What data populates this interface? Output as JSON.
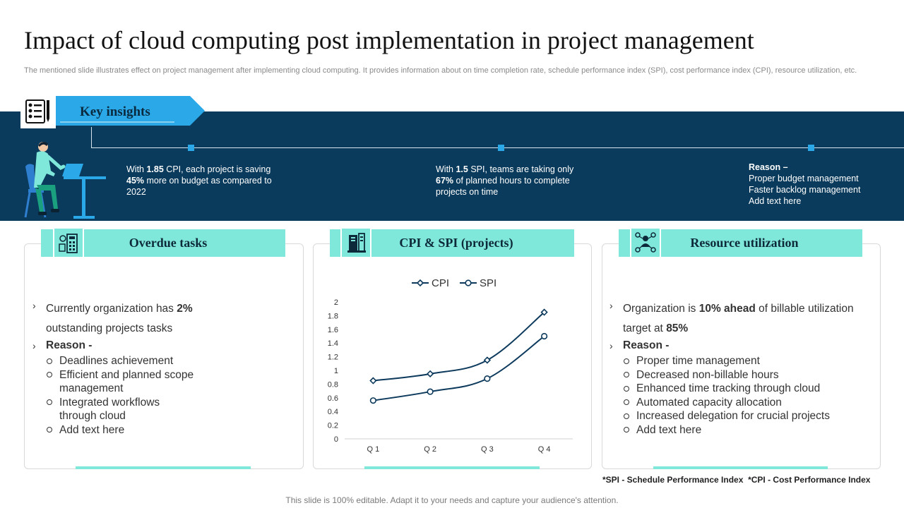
{
  "header": {
    "title": "Impact of cloud computing post implementation in project management",
    "subtitle": "The mentioned slide illustrates effect on project management after implementing cloud computing. It provides information about on time completion rate, schedule performance index (SPI), cost performance index (CPI), resource utilization, etc."
  },
  "key_insights": {
    "label": "Key insights",
    "items": [
      {
        "pre": "With ",
        "b1": "1.85",
        "mid1": " CPI, each project is saving ",
        "b2": "45%",
        "post": " more on budget as compared to 2022"
      },
      {
        "pre": "With ",
        "b1": "1.5",
        "mid1": " SPI, teams are taking only ",
        "b2": "67%",
        "post": " of planned hours to complete projects on time"
      }
    ],
    "reason": {
      "title": "Reason –",
      "lines": [
        "Proper budget management",
        "Faster backlog management",
        "Add text here"
      ]
    }
  },
  "cards": {
    "overdue": {
      "title": "Overdue tasks",
      "bullet1_pre": "Currently organization has ",
      "bullet1_bold": "2%",
      "bullet1_line2": "outstanding projects tasks",
      "reason": "Reason -",
      "subs": [
        "Deadlines achievement",
        "Efficient and planned scope",
        "management",
        "Integrated workflows",
        "through cloud",
        "Add text here"
      ]
    },
    "cpi_spi": {
      "title": "CPI & SPI (projects)"
    },
    "resource": {
      "title": "Resource utilization",
      "bullet1_pre": "Organization is ",
      "bullet1_bold": "10% ahead",
      "bullet1_post": " of billable utilization",
      "bullet1_line2_pre": "target at ",
      "bullet1_line2_bold": "85%",
      "reason": "Reason -",
      "subs": [
        "Proper time management",
        "Decreased non-billable hours",
        "Enhanced time tracking through cloud",
        "Automated capacity allocation",
        "Increased delegation for crucial projects",
        "Add text here"
      ]
    }
  },
  "chart_data": {
    "type": "line",
    "categories": [
      "Q 1",
      "Q 2",
      "Q 3",
      "Q 4"
    ],
    "series": [
      {
        "name": "CPI",
        "values": [
          0.85,
          0.95,
          1.15,
          1.85
        ],
        "marker": "diamond"
      },
      {
        "name": "SPI",
        "values": [
          0.56,
          0.69,
          0.88,
          1.5
        ],
        "marker": "circle"
      }
    ],
    "ylim": [
      0,
      2
    ],
    "yticks": [
      "0",
      "0.2",
      "0.4",
      "0.6",
      "0.8",
      "1",
      "1.2",
      "1.4",
      "1.6",
      "1.8",
      "2"
    ],
    "legend": "top",
    "color": "#0d3a5c"
  },
  "footnote": "*SPI - Schedule Performance Index  *CPI - Cost Performance Index",
  "bottom_note": "This slide is 100% editable. Adapt it to your needs and capture your audience's attention."
}
